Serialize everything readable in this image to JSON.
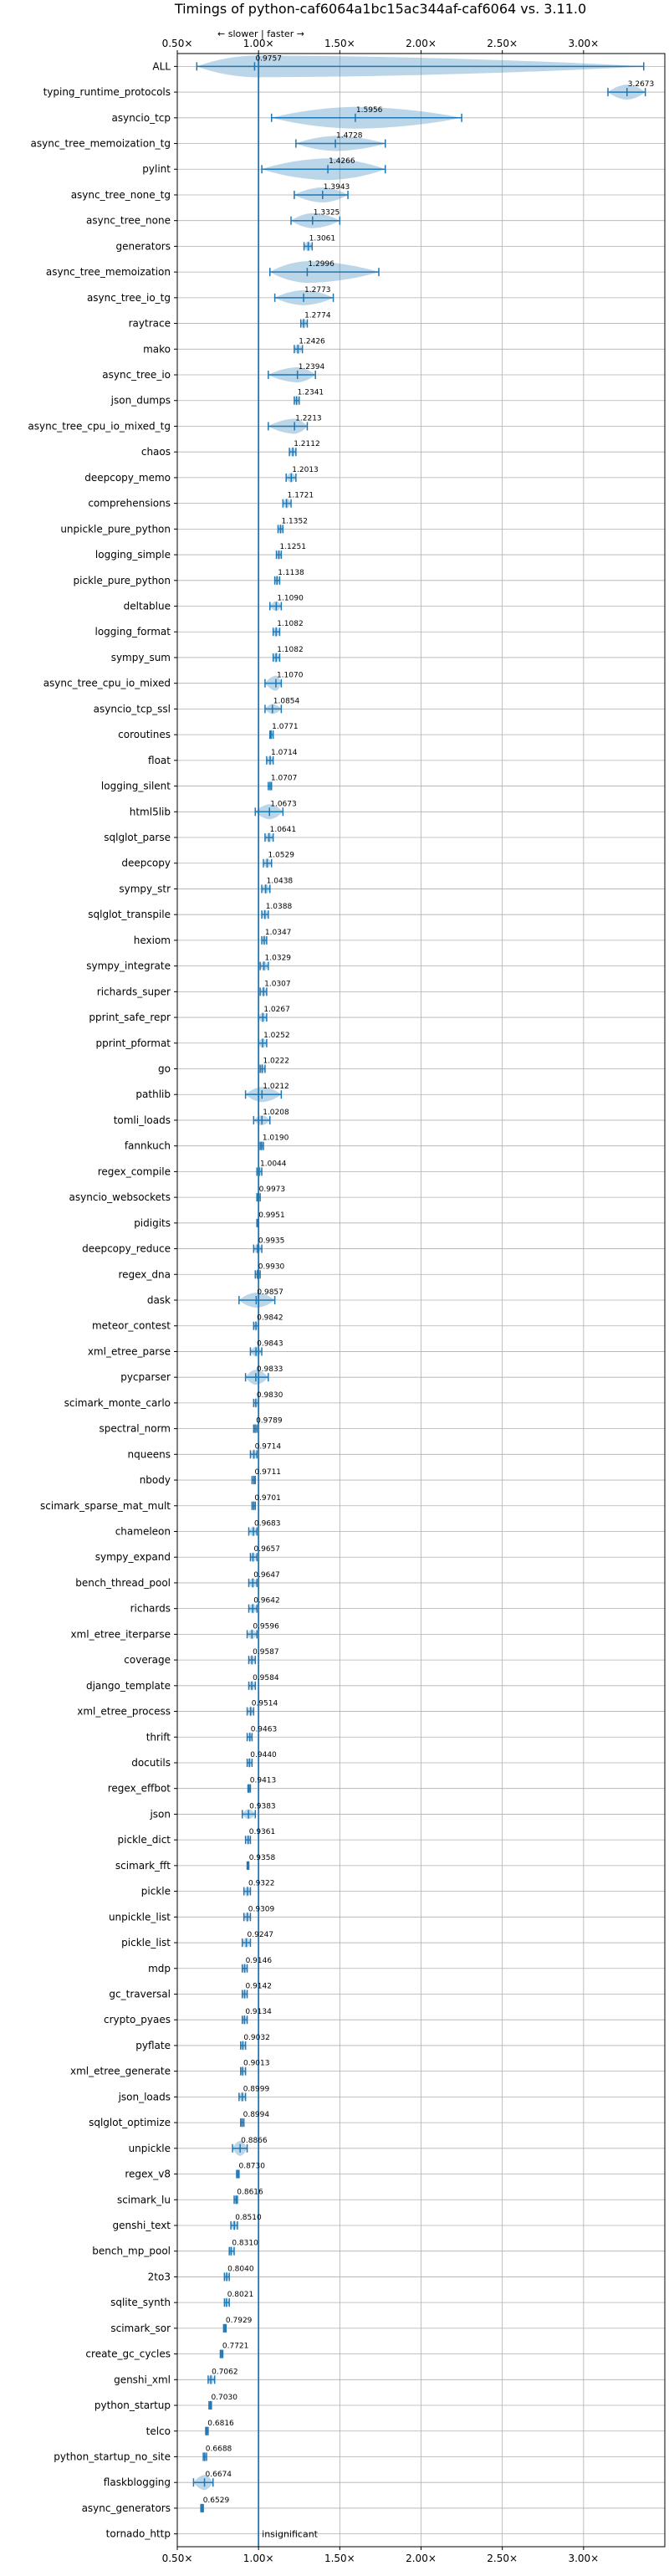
{
  "chart_data": {
    "type": "violin",
    "title": "Timings of python-caf6064a1bc15ac344af-caf6064 vs. 3.11.0",
    "direction_annotation": "← slower | faster →",
    "x_scale": "reciprocal",
    "x_ticks": [
      "0.50×",
      "1.00×",
      "1.50×",
      "2.00×",
      "2.50×",
      "3.00×"
    ],
    "x_tick_values": [
      0.5,
      1.0,
      1.5,
      2.0,
      2.5,
      3.0
    ],
    "xlim": [
      0.5,
      3.5
    ],
    "reference_line": 1.0,
    "grid": true,
    "categories": [
      {
        "name": "ALL",
        "value": 0.9757,
        "label": "0.9757",
        "lo": 0.62,
        "hi": 3.37,
        "spread": "wide"
      },
      {
        "name": "typing_runtime_protocols",
        "value": 3.2673,
        "label": "3.2673",
        "lo": 3.15,
        "hi": 3.38,
        "spread": "medium"
      },
      {
        "name": "asyncio_tcp",
        "value": 1.5956,
        "label": "1.5956",
        "lo": 1.08,
        "hi": 2.25,
        "spread": "wide"
      },
      {
        "name": "async_tree_memoization_tg",
        "value": 1.4728,
        "label": "1.4728",
        "lo": 1.23,
        "hi": 1.78,
        "spread": "medium"
      },
      {
        "name": "pylint",
        "value": 1.4266,
        "label": "1.4266",
        "lo": 1.02,
        "hi": 1.78,
        "spread": "wide"
      },
      {
        "name": "async_tree_none_tg",
        "value": 1.3943,
        "label": "1.3943",
        "lo": 1.22,
        "hi": 1.55,
        "spread": "medium"
      },
      {
        "name": "async_tree_none",
        "value": 1.3325,
        "label": "1.3325",
        "lo": 1.2,
        "hi": 1.5,
        "spread": "medium"
      },
      {
        "name": "generators",
        "value": 1.3061,
        "label": "1.3061",
        "lo": 1.28,
        "hi": 1.33,
        "spread": "narrow"
      },
      {
        "name": "async_tree_memoization",
        "value": 1.2996,
        "label": "1.2996",
        "lo": 1.07,
        "hi": 1.74,
        "spread": "wide"
      },
      {
        "name": "async_tree_io_tg",
        "value": 1.2773,
        "label": "1.2773",
        "lo": 1.1,
        "hi": 1.46,
        "spread": "medium"
      },
      {
        "name": "raytrace",
        "value": 1.2774,
        "label": "1.2774",
        "lo": 1.26,
        "hi": 1.3,
        "spread": "narrow"
      },
      {
        "name": "mako",
        "value": 1.2426,
        "label": "1.2426",
        "lo": 1.22,
        "hi": 1.27,
        "spread": "narrow"
      },
      {
        "name": "async_tree_io",
        "value": 1.2394,
        "label": "1.2394",
        "lo": 1.06,
        "hi": 1.35,
        "spread": "medium"
      },
      {
        "name": "json_dumps",
        "value": 1.2341,
        "label": "1.2341",
        "lo": 1.22,
        "hi": 1.25,
        "spread": "narrow"
      },
      {
        "name": "async_tree_cpu_io_mixed_tg",
        "value": 1.2213,
        "label": "1.2213",
        "lo": 1.06,
        "hi": 1.3,
        "spread": "medium"
      },
      {
        "name": "chaos",
        "value": 1.2112,
        "label": "1.2112",
        "lo": 1.19,
        "hi": 1.23,
        "spread": "narrow"
      },
      {
        "name": "deepcopy_memo",
        "value": 1.2013,
        "label": "1.2013",
        "lo": 1.17,
        "hi": 1.23,
        "spread": "narrow"
      },
      {
        "name": "comprehensions",
        "value": 1.1721,
        "label": "1.1721",
        "lo": 1.15,
        "hi": 1.2,
        "spread": "narrow"
      },
      {
        "name": "unpickle_pure_python",
        "value": 1.1352,
        "label": "1.1352",
        "lo": 1.12,
        "hi": 1.15,
        "spread": "narrow"
      },
      {
        "name": "logging_simple",
        "value": 1.1251,
        "label": "1.1251",
        "lo": 1.11,
        "hi": 1.14,
        "spread": "narrow"
      },
      {
        "name": "pickle_pure_python",
        "value": 1.1138,
        "label": "1.1138",
        "lo": 1.1,
        "hi": 1.13,
        "spread": "narrow"
      },
      {
        "name": "deltablue",
        "value": 1.109,
        "label": "1.1090",
        "lo": 1.07,
        "hi": 1.14,
        "spread": "narrow"
      },
      {
        "name": "logging_format",
        "value": 1.1082,
        "label": "1.1082",
        "lo": 1.09,
        "hi": 1.13,
        "spread": "narrow"
      },
      {
        "name": "sympy_sum",
        "value": 1.1082,
        "label": "1.1082",
        "lo": 1.09,
        "hi": 1.13,
        "spread": "narrow"
      },
      {
        "name": "async_tree_cpu_io_mixed",
        "value": 1.107,
        "label": "1.1070",
        "lo": 1.04,
        "hi": 1.14,
        "spread": "medium"
      },
      {
        "name": "asyncio_tcp_ssl",
        "value": 1.0854,
        "label": "1.0854",
        "lo": 1.04,
        "hi": 1.14,
        "spread": "narrow"
      },
      {
        "name": "coroutines",
        "value": 1.0771,
        "label": "1.0771",
        "lo": 1.07,
        "hi": 1.09,
        "spread": "narrow"
      },
      {
        "name": "float",
        "value": 1.0714,
        "label": "1.0714",
        "lo": 1.05,
        "hi": 1.09,
        "spread": "narrow"
      },
      {
        "name": "logging_silent",
        "value": 1.0707,
        "label": "1.0707",
        "lo": 1.06,
        "hi": 1.08,
        "spread": "narrow"
      },
      {
        "name": "html5lib",
        "value": 1.0673,
        "label": "1.0673",
        "lo": 0.98,
        "hi": 1.15,
        "spread": "medium"
      },
      {
        "name": "sqlglot_parse",
        "value": 1.0641,
        "label": "1.0641",
        "lo": 1.04,
        "hi": 1.09,
        "spread": "narrow"
      },
      {
        "name": "deepcopy",
        "value": 1.0529,
        "label": "1.0529",
        "lo": 1.03,
        "hi": 1.08,
        "spread": "narrow"
      },
      {
        "name": "sympy_str",
        "value": 1.0438,
        "label": "1.0438",
        "lo": 1.02,
        "hi": 1.07,
        "spread": "narrow"
      },
      {
        "name": "sqlglot_transpile",
        "value": 1.0388,
        "label": "1.0388",
        "lo": 1.02,
        "hi": 1.06,
        "spread": "narrow"
      },
      {
        "name": "hexiom",
        "value": 1.0347,
        "label": "1.0347",
        "lo": 1.02,
        "hi": 1.05,
        "spread": "narrow"
      },
      {
        "name": "sympy_integrate",
        "value": 1.0329,
        "label": "1.0329",
        "lo": 1.01,
        "hi": 1.06,
        "spread": "narrow"
      },
      {
        "name": "richards_super",
        "value": 1.0307,
        "label": "1.0307",
        "lo": 1.01,
        "hi": 1.05,
        "spread": "narrow"
      },
      {
        "name": "pprint_safe_repr",
        "value": 1.0267,
        "label": "1.0267",
        "lo": 1.0,
        "hi": 1.05,
        "spread": "narrow"
      },
      {
        "name": "pprint_pformat",
        "value": 1.0252,
        "label": "1.0252",
        "lo": 1.0,
        "hi": 1.05,
        "spread": "narrow"
      },
      {
        "name": "go",
        "value": 1.0222,
        "label": "1.0222",
        "lo": 1.01,
        "hi": 1.04,
        "spread": "narrow"
      },
      {
        "name": "pathlib",
        "value": 1.0212,
        "label": "1.0212",
        "lo": 0.92,
        "hi": 1.14,
        "spread": "medium"
      },
      {
        "name": "tomli_loads",
        "value": 1.0208,
        "label": "1.0208",
        "lo": 0.97,
        "hi": 1.07,
        "spread": "narrow"
      },
      {
        "name": "fannkuch",
        "value": 1.019,
        "label": "1.0190",
        "lo": 1.01,
        "hi": 1.03,
        "spread": "narrow"
      },
      {
        "name": "regex_compile",
        "value": 1.0044,
        "label": "1.0044",
        "lo": 0.99,
        "hi": 1.02,
        "spread": "narrow"
      },
      {
        "name": "asyncio_websockets",
        "value": 0.9973,
        "label": "0.9973",
        "lo": 0.99,
        "hi": 1.01,
        "spread": "narrow"
      },
      {
        "name": "pidigits",
        "value": 0.9951,
        "label": "0.9951",
        "lo": 0.99,
        "hi": 1.0,
        "spread": "narrow"
      },
      {
        "name": "deepcopy_reduce",
        "value": 0.9935,
        "label": "0.9935",
        "lo": 0.97,
        "hi": 1.02,
        "spread": "narrow"
      },
      {
        "name": "regex_dna",
        "value": 0.993,
        "label": "0.9930",
        "lo": 0.98,
        "hi": 1.01,
        "spread": "narrow"
      },
      {
        "name": "dask",
        "value": 0.9857,
        "label": "0.9857",
        "lo": 0.88,
        "hi": 1.1,
        "spread": "medium"
      },
      {
        "name": "meteor_contest",
        "value": 0.9842,
        "label": "0.9842",
        "lo": 0.97,
        "hi": 1.0,
        "spread": "narrow"
      },
      {
        "name": "xml_etree_parse",
        "value": 0.9843,
        "label": "0.9843",
        "lo": 0.95,
        "hi": 1.02,
        "spread": "narrow"
      },
      {
        "name": "pycparser",
        "value": 0.9833,
        "label": "0.9833",
        "lo": 0.92,
        "hi": 1.06,
        "spread": "medium"
      },
      {
        "name": "scimark_monte_carlo",
        "value": 0.983,
        "label": "0.9830",
        "lo": 0.97,
        "hi": 1.0,
        "spread": "narrow"
      },
      {
        "name": "spectral_norm",
        "value": 0.9789,
        "label": "0.9789",
        "lo": 0.97,
        "hi": 0.99,
        "spread": "narrow"
      },
      {
        "name": "nqueens",
        "value": 0.9714,
        "label": "0.9714",
        "lo": 0.95,
        "hi": 0.99,
        "spread": "narrow"
      },
      {
        "name": "nbody",
        "value": 0.9711,
        "label": "0.9711",
        "lo": 0.96,
        "hi": 0.98,
        "spread": "narrow"
      },
      {
        "name": "scimark_sparse_mat_mult",
        "value": 0.9701,
        "label": "0.9701",
        "lo": 0.96,
        "hi": 0.98,
        "spread": "narrow"
      },
      {
        "name": "chameleon",
        "value": 0.9683,
        "label": "0.9683",
        "lo": 0.94,
        "hi": 0.99,
        "spread": "narrow"
      },
      {
        "name": "sympy_expand",
        "value": 0.9657,
        "label": "0.9657",
        "lo": 0.95,
        "hi": 0.99,
        "spread": "narrow"
      },
      {
        "name": "bench_thread_pool",
        "value": 0.9647,
        "label": "0.9647",
        "lo": 0.94,
        "hi": 0.99,
        "spread": "narrow"
      },
      {
        "name": "richards",
        "value": 0.9642,
        "label": "0.9642",
        "lo": 0.94,
        "hi": 0.99,
        "spread": "narrow"
      },
      {
        "name": "xml_etree_iterparse",
        "value": 0.9596,
        "label": "0.9596",
        "lo": 0.93,
        "hi": 0.99,
        "spread": "narrow"
      },
      {
        "name": "coverage",
        "value": 0.9587,
        "label": "0.9587",
        "lo": 0.94,
        "hi": 0.98,
        "spread": "narrow"
      },
      {
        "name": "django_template",
        "value": 0.9584,
        "label": "0.9584",
        "lo": 0.94,
        "hi": 0.98,
        "spread": "narrow"
      },
      {
        "name": "xml_etree_process",
        "value": 0.9514,
        "label": "0.9514",
        "lo": 0.93,
        "hi": 0.97,
        "spread": "narrow"
      },
      {
        "name": "thrift",
        "value": 0.9463,
        "label": "0.9463",
        "lo": 0.93,
        "hi": 0.96,
        "spread": "narrow"
      },
      {
        "name": "docutils",
        "value": 0.944,
        "label": "0.9440",
        "lo": 0.93,
        "hi": 0.96,
        "spread": "narrow"
      },
      {
        "name": "regex_effbot",
        "value": 0.9413,
        "label": "0.9413",
        "lo": 0.935,
        "hi": 0.95,
        "spread": "narrow"
      },
      {
        "name": "json",
        "value": 0.9383,
        "label": "0.9383",
        "lo": 0.9,
        "hi": 0.98,
        "spread": "narrow"
      },
      {
        "name": "pickle_dict",
        "value": 0.9361,
        "label": "0.9361",
        "lo": 0.92,
        "hi": 0.95,
        "spread": "narrow"
      },
      {
        "name": "scimark_fft",
        "value": 0.9358,
        "label": "0.9358",
        "lo": 0.93,
        "hi": 0.94,
        "spread": "narrow"
      },
      {
        "name": "pickle",
        "value": 0.9322,
        "label": "0.9322",
        "lo": 0.91,
        "hi": 0.95,
        "spread": "narrow"
      },
      {
        "name": "unpickle_list",
        "value": 0.9309,
        "label": "0.9309",
        "lo": 0.91,
        "hi": 0.95,
        "spread": "narrow"
      },
      {
        "name": "pickle_list",
        "value": 0.9247,
        "label": "0.9247",
        "lo": 0.9,
        "hi": 0.95,
        "spread": "narrow"
      },
      {
        "name": "mdp",
        "value": 0.9146,
        "label": "0.9146",
        "lo": 0.9,
        "hi": 0.93,
        "spread": "narrow"
      },
      {
        "name": "gc_traversal",
        "value": 0.9142,
        "label": "0.9142",
        "lo": 0.9,
        "hi": 0.93,
        "spread": "narrow"
      },
      {
        "name": "crypto_pyaes",
        "value": 0.9134,
        "label": "0.9134",
        "lo": 0.9,
        "hi": 0.93,
        "spread": "narrow"
      },
      {
        "name": "pyflate",
        "value": 0.9032,
        "label": "0.9032",
        "lo": 0.89,
        "hi": 0.92,
        "spread": "narrow"
      },
      {
        "name": "xml_etree_generate",
        "value": 0.9013,
        "label": "0.9013",
        "lo": 0.89,
        "hi": 0.92,
        "spread": "narrow"
      },
      {
        "name": "json_loads",
        "value": 0.8999,
        "label": "0.8999",
        "lo": 0.88,
        "hi": 0.92,
        "spread": "narrow"
      },
      {
        "name": "sqlglot_optimize",
        "value": 0.8994,
        "label": "0.8994",
        "lo": 0.89,
        "hi": 0.91,
        "spread": "narrow"
      },
      {
        "name": "unpickle",
        "value": 0.8866,
        "label": "0.8866",
        "lo": 0.84,
        "hi": 0.93,
        "spread": "medium"
      },
      {
        "name": "regex_v8",
        "value": 0.873,
        "label": "0.8730",
        "lo": 0.865,
        "hi": 0.88,
        "spread": "narrow"
      },
      {
        "name": "scimark_lu",
        "value": 0.8616,
        "label": "0.8616",
        "lo": 0.85,
        "hi": 0.87,
        "spread": "narrow"
      },
      {
        "name": "genshi_text",
        "value": 0.851,
        "label": "0.8510",
        "lo": 0.83,
        "hi": 0.87,
        "spread": "narrow"
      },
      {
        "name": "bench_mp_pool",
        "value": 0.831,
        "label": "0.8310",
        "lo": 0.82,
        "hi": 0.85,
        "spread": "narrow"
      },
      {
        "name": "2to3",
        "value": 0.804,
        "label": "0.8040",
        "lo": 0.79,
        "hi": 0.82,
        "spread": "narrow"
      },
      {
        "name": "sqlite_synth",
        "value": 0.8021,
        "label": "0.8021",
        "lo": 0.79,
        "hi": 0.82,
        "spread": "narrow"
      },
      {
        "name": "scimark_sor",
        "value": 0.7929,
        "label": "0.7929",
        "lo": 0.785,
        "hi": 0.8,
        "spread": "narrow"
      },
      {
        "name": "create_gc_cycles",
        "value": 0.7721,
        "label": "0.7721",
        "lo": 0.765,
        "hi": 0.78,
        "spread": "narrow"
      },
      {
        "name": "genshi_xml",
        "value": 0.7062,
        "label": "0.7062",
        "lo": 0.69,
        "hi": 0.73,
        "spread": "narrow"
      },
      {
        "name": "python_startup",
        "value": 0.703,
        "label": "0.7030",
        "lo": 0.695,
        "hi": 0.71,
        "spread": "narrow"
      },
      {
        "name": "telco",
        "value": 0.6816,
        "label": "0.6816",
        "lo": 0.675,
        "hi": 0.69,
        "spread": "narrow"
      },
      {
        "name": "python_startup_no_site",
        "value": 0.6688,
        "label": "0.6688",
        "lo": 0.66,
        "hi": 0.68,
        "spread": "narrow"
      },
      {
        "name": "flaskblogging",
        "value": 0.6674,
        "label": "0.6674",
        "lo": 0.6,
        "hi": 0.72,
        "spread": "medium"
      },
      {
        "name": "async_generators",
        "value": 0.6529,
        "label": "0.6529",
        "lo": 0.645,
        "hi": 0.66,
        "spread": "narrow"
      },
      {
        "name": "tornado_http",
        "value": null,
        "label": "insignificant",
        "lo": null,
        "hi": null,
        "spread": "none"
      }
    ]
  },
  "colors": {
    "violin": "#1f77b4",
    "grid": "#b0b0b0",
    "text": "#000000"
  }
}
